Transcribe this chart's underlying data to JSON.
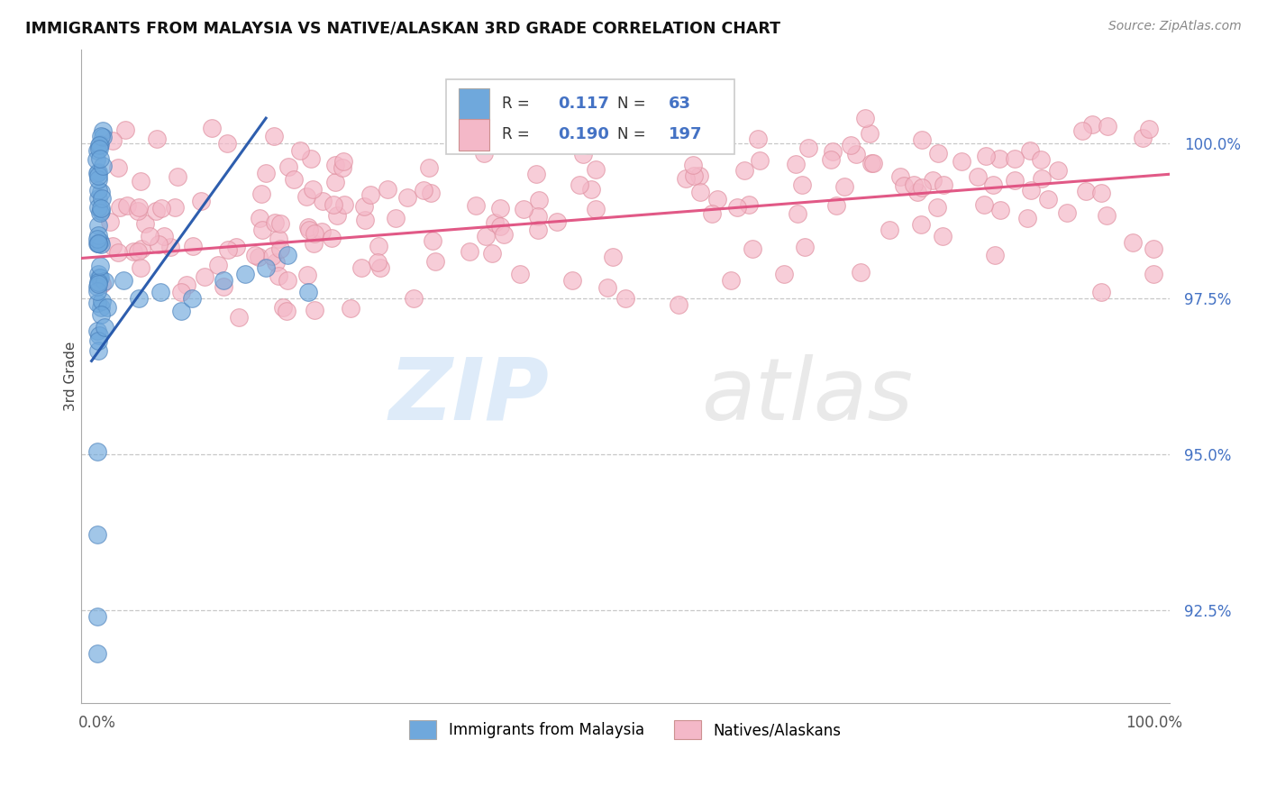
{
  "title": "IMMIGRANTS FROM MALAYSIA VS NATIVE/ALASKAN 3RD GRADE CORRELATION CHART",
  "source": "Source: ZipAtlas.com",
  "ylabel": "3rd Grade",
  "ytick_values": [
    92.5,
    95.0,
    97.5,
    100.0
  ],
  "ytick_labels": [
    "92.5%",
    "95.0%",
    "97.5%",
    "100.0%"
  ],
  "ymin": 91.0,
  "ymax": 101.5,
  "xmin": -1.5,
  "xmax": 101.5,
  "legend_blue_r": "0.117",
  "legend_blue_n": "63",
  "legend_pink_r": "0.190",
  "legend_pink_n": "197",
  "legend_label_blue": "Immigrants from Malaysia",
  "legend_label_pink": "Natives/Alaskans",
  "blue_color": "#6fa8dc",
  "pink_color": "#f4b8c8",
  "blue_line_color": "#2255aa",
  "pink_line_color": "#e05080",
  "blue_marker_edge": "#4a80bb",
  "pink_marker_edge": "#e090a0",
  "watermark_zip_color": "#c8dff5",
  "watermark_atlas_color": "#d8d8d8"
}
